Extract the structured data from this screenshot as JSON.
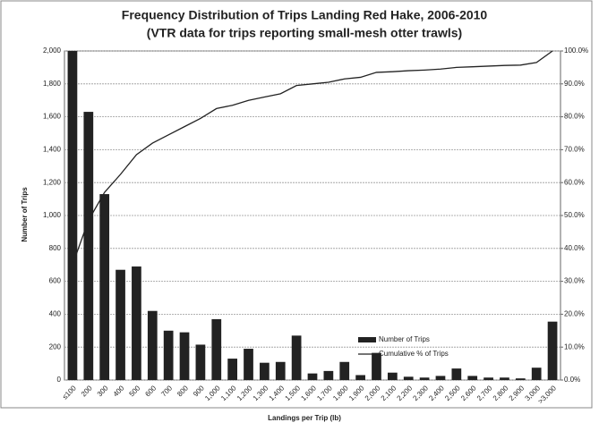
{
  "chart_data": {
    "type": "bar",
    "title": "Frequency Distribution of Trips Landing Red Hake, 2006-2010",
    "subtitle": "(VTR data for trips reporting small-mesh otter trawls)",
    "x_label": "Landings per Trip (lb)",
    "y_label": "Number of Trips",
    "categories": [
      "≤100",
      "200",
      "300",
      "400",
      "500",
      "600",
      "700",
      "800",
      "900",
      "1,000",
      "1,100",
      "1,200",
      "1,300",
      "1,400",
      "1,500",
      "1,600",
      "1,700",
      "1,800",
      "1,900",
      "2,000",
      "2,100",
      "2,200",
      "2,300",
      "2,400",
      "2,500",
      "2,600",
      "2,700",
      "2,800",
      "2,900",
      "3,000",
      ">3,000"
    ],
    "series": [
      {
        "name": "Number of Trips",
        "type": "bar",
        "color": "#222222",
        "values": [
          2000,
          1630,
          1130,
          670,
          690,
          420,
          300,
          290,
          215,
          370,
          130,
          190,
          105,
          110,
          270,
          40,
          55,
          110,
          30,
          165,
          45,
          20,
          15,
          25,
          70,
          25,
          15,
          15,
          10,
          75,
          355
        ]
      },
      {
        "name": "Cumulative % of Trips",
        "type": "line",
        "axis": "y2",
        "color": "#222222",
        "values": [
          35,
          48.5,
          57,
          62.5,
          68.5,
          72,
          74.5,
          77,
          79.5,
          82.5,
          83.5,
          85,
          86,
          87,
          89.5,
          90,
          90.5,
          91.5,
          92,
          93.5,
          93.7,
          94,
          94.2,
          94.5,
          95,
          95.2,
          95.4,
          95.6,
          95.7,
          96.5,
          100
        ]
      }
    ],
    "ylim": [
      0,
      2000
    ],
    "yticks": [
      0,
      200,
      400,
      600,
      800,
      {
        "value": 1000,
        "label": "1,000"
      },
      {
        "value": 1200,
        "label": "1,200"
      },
      {
        "value": 1400,
        "label": "1,400"
      },
      {
        "value": 1600,
        "label": "1,600"
      },
      {
        "value": 1800,
        "label": "1,800"
      },
      {
        "value": 2000,
        "label": "2,000"
      }
    ],
    "y2lim": [
      0,
      100
    ],
    "y2ticks": [
      {
        "value": 0,
        "label": "0.0%"
      },
      {
        "value": 10,
        "label": "10.0%"
      },
      {
        "value": 20,
        "label": "20.0%"
      },
      {
        "value": 30,
        "label": "30.0%"
      },
      {
        "value": 40,
        "label": "40.0%"
      },
      {
        "value": 50,
        "label": "50.0%"
      },
      {
        "value": 60,
        "label": "60.0%"
      },
      {
        "value": 70,
        "label": "70.0%"
      },
      {
        "value": 80,
        "label": "80.0%"
      },
      {
        "value": 90,
        "label": "90.0%"
      },
      {
        "value": 100,
        "label": "100.0%"
      }
    ],
    "grid": true
  }
}
